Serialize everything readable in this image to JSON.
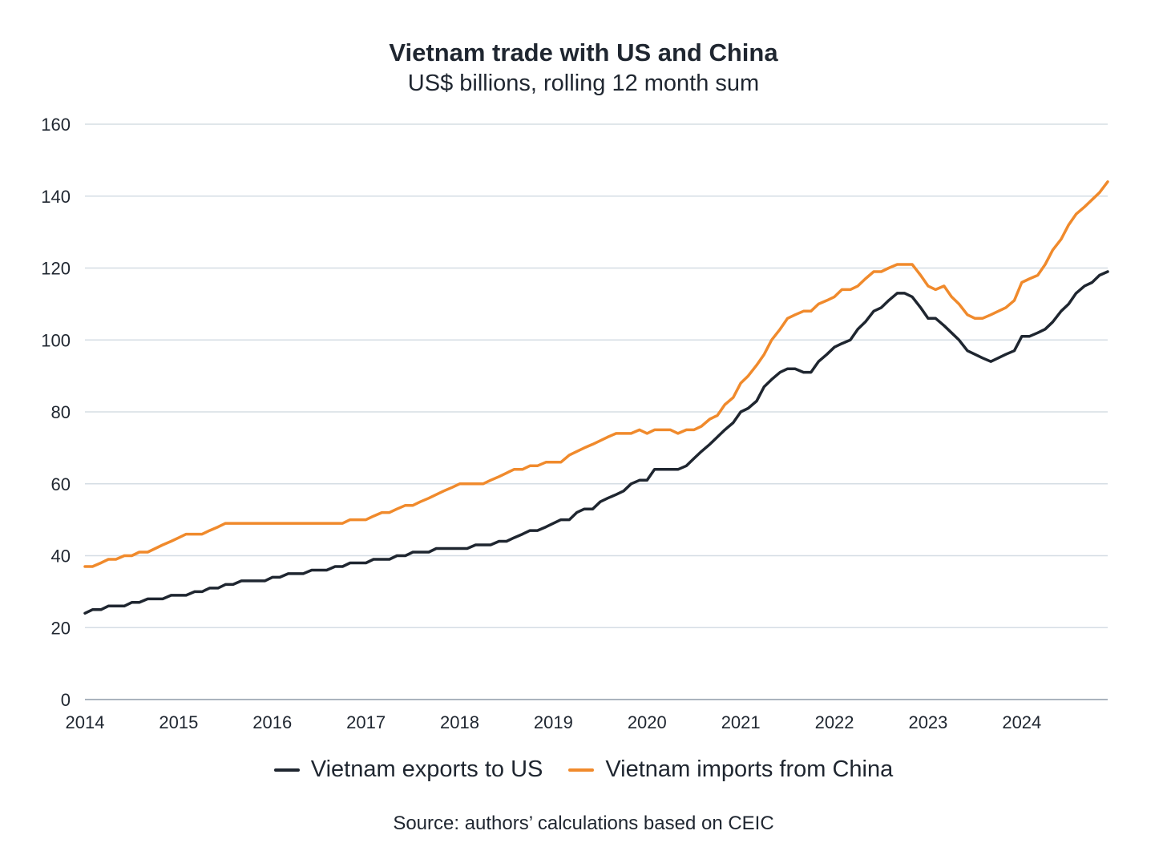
{
  "chart_data": {
    "type": "line",
    "title": "Vietnam trade with US and China",
    "subtitle": "US$ billions, rolling 12 month sum",
    "source": "Source: authors’ calculations based on CEIC",
    "xlabel": "",
    "ylabel": "",
    "xlim": [
      2014.0,
      2024.917
    ],
    "ylim": [
      0,
      160
    ],
    "x_ticks": [
      "2014",
      "2015",
      "2016",
      "2017",
      "2018",
      "2019",
      "2020",
      "2021",
      "2022",
      "2023",
      "2024"
    ],
    "y_ticks": [
      0,
      20,
      40,
      60,
      80,
      100,
      120,
      140,
      160
    ],
    "grid": true,
    "legend": "bottom-center",
    "series": [
      {
        "name": "Vietnam exports to US",
        "color": "#1f2630",
        "points": [
          [
            2014.0,
            24
          ],
          [
            2014.08,
            25
          ],
          [
            2014.17,
            25
          ],
          [
            2014.25,
            26
          ],
          [
            2014.33,
            26
          ],
          [
            2014.42,
            26
          ],
          [
            2014.5,
            27
          ],
          [
            2014.58,
            27
          ],
          [
            2014.67,
            28
          ],
          [
            2014.75,
            28
          ],
          [
            2014.83,
            28
          ],
          [
            2014.92,
            29
          ],
          [
            2015.0,
            29
          ],
          [
            2015.08,
            29
          ],
          [
            2015.17,
            30
          ],
          [
            2015.25,
            30
          ],
          [
            2015.33,
            31
          ],
          [
            2015.42,
            31
          ],
          [
            2015.5,
            32
          ],
          [
            2015.58,
            32
          ],
          [
            2015.67,
            33
          ],
          [
            2015.75,
            33
          ],
          [
            2015.83,
            33
          ],
          [
            2015.92,
            33
          ],
          [
            2016.0,
            34
          ],
          [
            2016.08,
            34
          ],
          [
            2016.17,
            35
          ],
          [
            2016.25,
            35
          ],
          [
            2016.33,
            35
          ],
          [
            2016.42,
            36
          ],
          [
            2016.5,
            36
          ],
          [
            2016.58,
            36
          ],
          [
            2016.67,
            37
          ],
          [
            2016.75,
            37
          ],
          [
            2016.83,
            38
          ],
          [
            2016.92,
            38
          ],
          [
            2017.0,
            38
          ],
          [
            2017.08,
            39
          ],
          [
            2017.17,
            39
          ],
          [
            2017.25,
            39
          ],
          [
            2017.33,
            40
          ],
          [
            2017.42,
            40
          ],
          [
            2017.5,
            41
          ],
          [
            2017.58,
            41
          ],
          [
            2017.67,
            41
          ],
          [
            2017.75,
            42
          ],
          [
            2017.83,
            42
          ],
          [
            2017.92,
            42
          ],
          [
            2018.0,
            42
          ],
          [
            2018.08,
            42
          ],
          [
            2018.17,
            43
          ],
          [
            2018.25,
            43
          ],
          [
            2018.33,
            43
          ],
          [
            2018.42,
            44
          ],
          [
            2018.5,
            44
          ],
          [
            2018.58,
            45
          ],
          [
            2018.67,
            46
          ],
          [
            2018.75,
            47
          ],
          [
            2018.83,
            47
          ],
          [
            2018.92,
            48
          ],
          [
            2019.0,
            49
          ],
          [
            2019.08,
            50
          ],
          [
            2019.17,
            50
          ],
          [
            2019.25,
            52
          ],
          [
            2019.33,
            53
          ],
          [
            2019.42,
            53
          ],
          [
            2019.5,
            55
          ],
          [
            2019.58,
            56
          ],
          [
            2019.67,
            57
          ],
          [
            2019.75,
            58
          ],
          [
            2019.83,
            60
          ],
          [
            2019.92,
            61
          ],
          [
            2020.0,
            61
          ],
          [
            2020.08,
            64
          ],
          [
            2020.17,
            64
          ],
          [
            2020.25,
            64
          ],
          [
            2020.33,
            64
          ],
          [
            2020.42,
            65
          ],
          [
            2020.5,
            67
          ],
          [
            2020.58,
            69
          ],
          [
            2020.67,
            71
          ],
          [
            2020.75,
            73
          ],
          [
            2020.83,
            75
          ],
          [
            2020.92,
            77
          ],
          [
            2021.0,
            80
          ],
          [
            2021.08,
            81
          ],
          [
            2021.17,
            83
          ],
          [
            2021.25,
            87
          ],
          [
            2021.33,
            89
          ],
          [
            2021.42,
            91
          ],
          [
            2021.5,
            92
          ],
          [
            2021.58,
            92
          ],
          [
            2021.67,
            91
          ],
          [
            2021.75,
            91
          ],
          [
            2021.83,
            94
          ],
          [
            2021.92,
            96
          ],
          [
            2022.0,
            98
          ],
          [
            2022.08,
            99
          ],
          [
            2022.17,
            100
          ],
          [
            2022.25,
            103
          ],
          [
            2022.33,
            105
          ],
          [
            2022.42,
            108
          ],
          [
            2022.5,
            109
          ],
          [
            2022.58,
            111
          ],
          [
            2022.67,
            113
          ],
          [
            2022.75,
            113
          ],
          [
            2022.83,
            112
          ],
          [
            2022.92,
            109
          ],
          [
            2023.0,
            106
          ],
          [
            2023.08,
            106
          ],
          [
            2023.17,
            104
          ],
          [
            2023.25,
            102
          ],
          [
            2023.33,
            100
          ],
          [
            2023.42,
            97
          ],
          [
            2023.5,
            96
          ],
          [
            2023.58,
            95
          ],
          [
            2023.67,
            94
          ],
          [
            2023.75,
            95
          ],
          [
            2023.83,
            96
          ],
          [
            2023.92,
            97
          ],
          [
            2024.0,
            101
          ],
          [
            2024.08,
            101
          ],
          [
            2024.17,
            102
          ],
          [
            2024.25,
            103
          ],
          [
            2024.33,
            105
          ],
          [
            2024.42,
            108
          ],
          [
            2024.5,
            110
          ],
          [
            2024.58,
            113
          ],
          [
            2024.67,
            115
          ],
          [
            2024.75,
            116
          ],
          [
            2024.83,
            118
          ],
          [
            2024.917,
            119
          ]
        ]
      },
      {
        "name": "Vietnam imports from China",
        "color": "#f08a2c",
        "points": [
          [
            2014.0,
            37
          ],
          [
            2014.08,
            37
          ],
          [
            2014.17,
            38
          ],
          [
            2014.25,
            39
          ],
          [
            2014.33,
            39
          ],
          [
            2014.42,
            40
          ],
          [
            2014.5,
            40
          ],
          [
            2014.58,
            41
          ],
          [
            2014.67,
            41
          ],
          [
            2014.75,
            42
          ],
          [
            2014.83,
            43
          ],
          [
            2014.92,
            44
          ],
          [
            2015.0,
            45
          ],
          [
            2015.08,
            46
          ],
          [
            2015.17,
            46
          ],
          [
            2015.25,
            46
          ],
          [
            2015.33,
            47
          ],
          [
            2015.42,
            48
          ],
          [
            2015.5,
            49
          ],
          [
            2015.58,
            49
          ],
          [
            2015.67,
            49
          ],
          [
            2015.75,
            49
          ],
          [
            2015.83,
            49
          ],
          [
            2015.92,
            49
          ],
          [
            2016.0,
            49
          ],
          [
            2016.08,
            49
          ],
          [
            2016.17,
            49
          ],
          [
            2016.25,
            49
          ],
          [
            2016.33,
            49
          ],
          [
            2016.42,
            49
          ],
          [
            2016.5,
            49
          ],
          [
            2016.58,
            49
          ],
          [
            2016.67,
            49
          ],
          [
            2016.75,
            49
          ],
          [
            2016.83,
            50
          ],
          [
            2016.92,
            50
          ],
          [
            2017.0,
            50
          ],
          [
            2017.08,
            51
          ],
          [
            2017.17,
            52
          ],
          [
            2017.25,
            52
          ],
          [
            2017.33,
            53
          ],
          [
            2017.42,
            54
          ],
          [
            2017.5,
            54
          ],
          [
            2017.58,
            55
          ],
          [
            2017.67,
            56
          ],
          [
            2017.75,
            57
          ],
          [
            2017.83,
            58
          ],
          [
            2017.92,
            59
          ],
          [
            2018.0,
            60
          ],
          [
            2018.08,
            60
          ],
          [
            2018.17,
            60
          ],
          [
            2018.25,
            60
          ],
          [
            2018.33,
            61
          ],
          [
            2018.42,
            62
          ],
          [
            2018.5,
            63
          ],
          [
            2018.58,
            64
          ],
          [
            2018.67,
            64
          ],
          [
            2018.75,
            65
          ],
          [
            2018.83,
            65
          ],
          [
            2018.92,
            66
          ],
          [
            2019.0,
            66
          ],
          [
            2019.08,
            66
          ],
          [
            2019.17,
            68
          ],
          [
            2019.25,
            69
          ],
          [
            2019.33,
            70
          ],
          [
            2019.42,
            71
          ],
          [
            2019.5,
            72
          ],
          [
            2019.58,
            73
          ],
          [
            2019.67,
            74
          ],
          [
            2019.75,
            74
          ],
          [
            2019.83,
            74
          ],
          [
            2019.92,
            75
          ],
          [
            2020.0,
            74
          ],
          [
            2020.08,
            75
          ],
          [
            2020.17,
            75
          ],
          [
            2020.25,
            75
          ],
          [
            2020.33,
            74
          ],
          [
            2020.42,
            75
          ],
          [
            2020.5,
            75
          ],
          [
            2020.58,
            76
          ],
          [
            2020.67,
            78
          ],
          [
            2020.75,
            79
          ],
          [
            2020.83,
            82
          ],
          [
            2020.92,
            84
          ],
          [
            2021.0,
            88
          ],
          [
            2021.08,
            90
          ],
          [
            2021.17,
            93
          ],
          [
            2021.25,
            96
          ],
          [
            2021.33,
            100
          ],
          [
            2021.42,
            103
          ],
          [
            2021.5,
            106
          ],
          [
            2021.58,
            107
          ],
          [
            2021.67,
            108
          ],
          [
            2021.75,
            108
          ],
          [
            2021.83,
            110
          ],
          [
            2021.92,
            111
          ],
          [
            2022.0,
            112
          ],
          [
            2022.08,
            114
          ],
          [
            2022.17,
            114
          ],
          [
            2022.25,
            115
          ],
          [
            2022.33,
            117
          ],
          [
            2022.42,
            119
          ],
          [
            2022.5,
            119
          ],
          [
            2022.58,
            120
          ],
          [
            2022.67,
            121
          ],
          [
            2022.75,
            121
          ],
          [
            2022.83,
            121
          ],
          [
            2022.92,
            118
          ],
          [
            2023.0,
            115
          ],
          [
            2023.08,
            114
          ],
          [
            2023.17,
            115
          ],
          [
            2023.25,
            112
          ],
          [
            2023.33,
            110
          ],
          [
            2023.42,
            107
          ],
          [
            2023.5,
            106
          ],
          [
            2023.58,
            106
          ],
          [
            2023.67,
            107
          ],
          [
            2023.75,
            108
          ],
          [
            2023.83,
            109
          ],
          [
            2023.92,
            111
          ],
          [
            2024.0,
            116
          ],
          [
            2024.08,
            117
          ],
          [
            2024.17,
            118
          ],
          [
            2024.25,
            121
          ],
          [
            2024.33,
            125
          ],
          [
            2024.42,
            128
          ],
          [
            2024.5,
            132
          ],
          [
            2024.58,
            135
          ],
          [
            2024.67,
            137
          ],
          [
            2024.75,
            139
          ],
          [
            2024.83,
            141
          ],
          [
            2024.917,
            144
          ]
        ]
      }
    ]
  }
}
